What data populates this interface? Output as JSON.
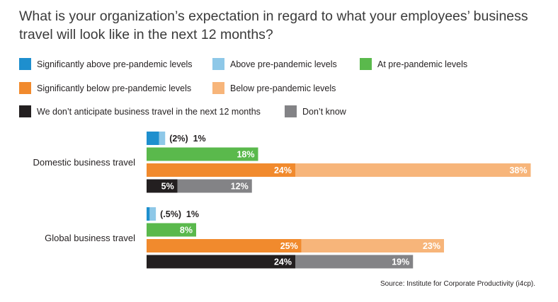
{
  "title": "What is your organization’s expectation in regard to what your employees’ business travel will look like in the next 12 months?",
  "source": "Source: Institute for Corporate Productivity (i4cp).",
  "colors": {
    "sig_above": "#1e8fce",
    "above": "#8ec8e8",
    "at": "#5ab94c",
    "sig_below": "#f18a2d",
    "below": "#f7b57a",
    "no_travel": "#231f20",
    "dont_know": "#838386"
  },
  "legend": [
    {
      "key": "sig_above",
      "label": "Significantly above pre-pandemic levels"
    },
    {
      "key": "above",
      "label": "Above pre-pandemic levels"
    },
    {
      "key": "at",
      "label": "At pre-pandemic levels"
    },
    {
      "key": "sig_below",
      "label": "Significantly below pre-pandemic levels"
    },
    {
      "key": "below",
      "label": "Below pre-pandemic levels"
    },
    {
      "key": "no_travel",
      "label": "We don’t anticipate business travel in the next 12 months"
    },
    {
      "key": "dont_know",
      "label": "Don’t know"
    }
  ],
  "chart_data": {
    "type": "bar",
    "orientation": "horizontal",
    "categories": [
      "Domestic business travel",
      "Global business travel"
    ],
    "groups": [
      {
        "category": "Domestic business travel",
        "rows": [
          {
            "segments": [
              {
                "key": "sig_above",
                "value": 2,
                "label": ""
              },
              {
                "key": "above",
                "value": 1,
                "label": ""
              }
            ],
            "outside_label": "(2%)  1%"
          },
          {
            "segments": [
              {
                "key": "at",
                "value": 18,
                "label": "18%"
              }
            ]
          },
          {
            "segments": [
              {
                "key": "sig_below",
                "value": 24,
                "label": "24%"
              },
              {
                "key": "below",
                "value": 38,
                "label": "38%"
              }
            ]
          },
          {
            "segments": [
              {
                "key": "no_travel",
                "value": 5,
                "label": "5%"
              },
              {
                "key": "dont_know",
                "value": 12,
                "label": "12%"
              }
            ]
          }
        ]
      },
      {
        "category": "Global business travel",
        "rows": [
          {
            "segments": [
              {
                "key": "sig_above",
                "value": 0.5,
                "label": ""
              },
              {
                "key": "above",
                "value": 1,
                "label": ""
              }
            ],
            "outside_label": "(.5%)  1%"
          },
          {
            "segments": [
              {
                "key": "at",
                "value": 8,
                "label": "8%"
              }
            ]
          },
          {
            "segments": [
              {
                "key": "sig_below",
                "value": 25,
                "label": "25%"
              },
              {
                "key": "below",
                "value": 23,
                "label": "23%"
              }
            ]
          },
          {
            "segments": [
              {
                "key": "no_travel",
                "value": 24,
                "label": "24%"
              },
              {
                "key": "dont_know",
                "value": 19,
                "label": "19%"
              }
            ]
          }
        ]
      }
    ]
  }
}
